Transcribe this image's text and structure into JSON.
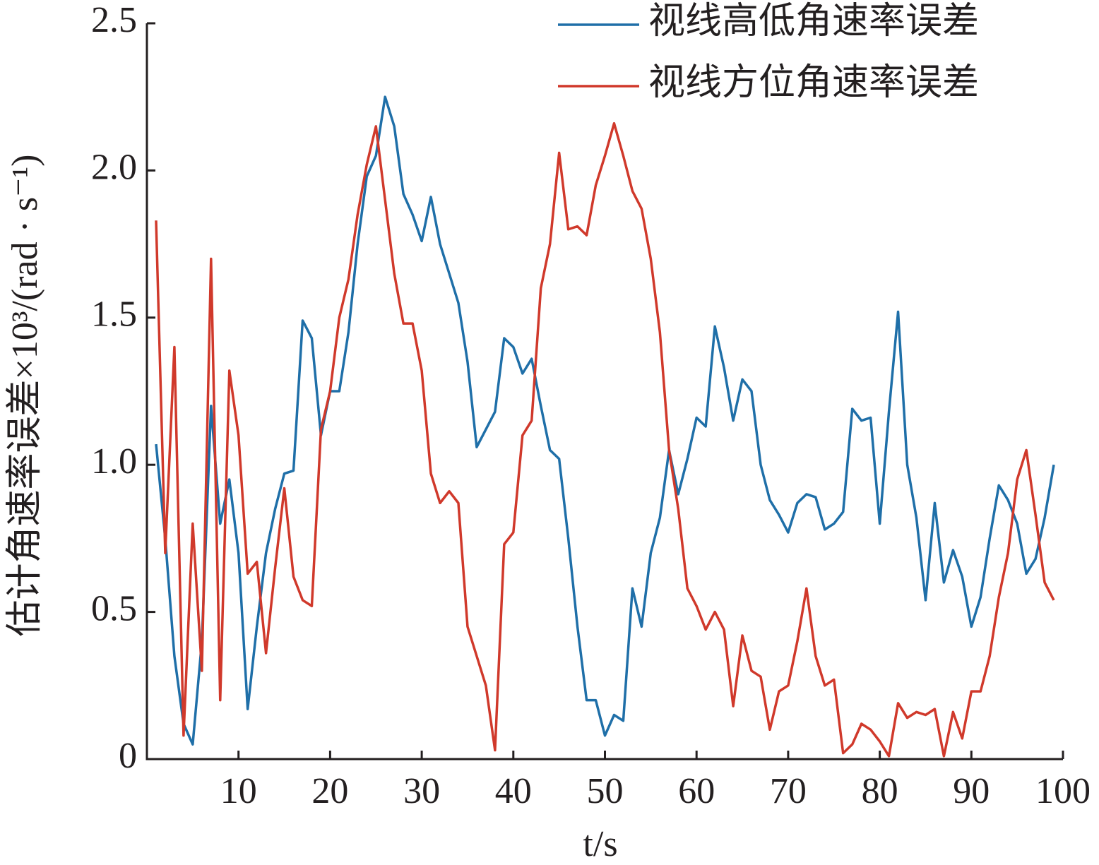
{
  "chart_data": {
    "type": "line",
    "xlabel": "t/s",
    "ylabel": "估计角速率误差×10³/(rad · s⁻¹)",
    "x": [
      1,
      2,
      3,
      4,
      5,
      6,
      7,
      8,
      9,
      10,
      11,
      12,
      13,
      14,
      15,
      16,
      17,
      18,
      19,
      20,
      21,
      22,
      23,
      24,
      25,
      26,
      27,
      28,
      29,
      30,
      31,
      32,
      33,
      34,
      35,
      36,
      37,
      38,
      39,
      40,
      41,
      42,
      43,
      44,
      45,
      46,
      47,
      48,
      49,
      50,
      51,
      52,
      53,
      54,
      55,
      56,
      57,
      58,
      59,
      60,
      61,
      62,
      63,
      64,
      65,
      66,
      67,
      68,
      69,
      70,
      71,
      72,
      73,
      74,
      75,
      76,
      77,
      78,
      79,
      80,
      81,
      82,
      83,
      84,
      85,
      86,
      87,
      88,
      89,
      90,
      91,
      92,
      93,
      94,
      95,
      96,
      97,
      98,
      99
    ],
    "series": [
      {
        "name": "视线高低角速率误差",
        "color": "#1f6fa8",
        "values": [
          1.07,
          0.75,
          0.35,
          0.12,
          0.05,
          0.4,
          1.2,
          0.8,
          0.95,
          0.7,
          0.17,
          0.45,
          0.7,
          0.85,
          0.97,
          0.98,
          1.49,
          1.43,
          1.1,
          1.25,
          1.25,
          1.45,
          1.75,
          1.98,
          2.05,
          2.25,
          2.15,
          1.92,
          1.85,
          1.76,
          1.91,
          1.75,
          1.65,
          1.55,
          1.35,
          1.06,
          1.12,
          1.18,
          1.43,
          1.4,
          1.31,
          1.36,
          1.2,
          1.05,
          1.02,
          0.75,
          0.45,
          0.2,
          0.2,
          0.08,
          0.15,
          0.13,
          0.58,
          0.45,
          0.7,
          0.82,
          1.05,
          0.9,
          1.02,
          1.16,
          1.13,
          1.47,
          1.33,
          1.15,
          1.29,
          1.25,
          1.0,
          0.88,
          0.83,
          0.77,
          0.87,
          0.9,
          0.89,
          0.78,
          0.8,
          0.84,
          1.19,
          1.15,
          1.16,
          0.8,
          1.18,
          1.52,
          1.0,
          0.82,
          0.54,
          0.87,
          0.6,
          0.71,
          0.62,
          0.45,
          0.55,
          0.75,
          0.93,
          0.88,
          0.8,
          0.63,
          0.68,
          0.82,
          1.0
        ]
      },
      {
        "name": "视线方位角速率误差",
        "color": "#d0392b",
        "values": [
          1.83,
          0.7,
          1.4,
          0.08,
          0.8,
          0.3,
          1.7,
          0.2,
          1.32,
          1.1,
          0.63,
          0.67,
          0.36,
          0.65,
          0.92,
          0.62,
          0.54,
          0.52,
          1.12,
          1.25,
          1.5,
          1.63,
          1.85,
          2.02,
          2.15,
          1.9,
          1.65,
          1.48,
          1.48,
          1.32,
          0.97,
          0.87,
          0.91,
          0.87,
          0.45,
          0.35,
          0.25,
          0.03,
          0.73,
          0.77,
          1.1,
          1.15,
          1.6,
          1.75,
          2.06,
          1.8,
          1.81,
          1.78,
          1.95,
          2.05,
          2.16,
          2.05,
          1.93,
          1.87,
          1.7,
          1.45,
          1.05,
          0.85,
          0.58,
          0.52,
          0.44,
          0.5,
          0.44,
          0.18,
          0.42,
          0.3,
          0.28,
          0.1,
          0.23,
          0.25,
          0.4,
          0.58,
          0.35,
          0.25,
          0.27,
          0.02,
          0.05,
          0.12,
          0.1,
          0.06,
          0.01,
          0.19,
          0.14,
          0.16,
          0.15,
          0.17,
          0.01,
          0.16,
          0.07,
          0.23,
          0.23,
          0.35,
          0.55,
          0.7,
          0.95,
          1.05,
          0.83,
          0.6,
          0.54
        ]
      }
    ],
    "xlim": [
      0,
      100
    ],
    "xticks": [
      10,
      20,
      30,
      40,
      50,
      60,
      70,
      80,
      90,
      100
    ],
    "ylim": [
      0,
      2.5
    ],
    "yticks": [
      0,
      0.5,
      {
        "value": 1,
        "label": "1.0"
      },
      1.5,
      {
        "value": 2,
        "label": "2.0"
      },
      2.5
    ],
    "grid": false,
    "legend": "upper right"
  }
}
